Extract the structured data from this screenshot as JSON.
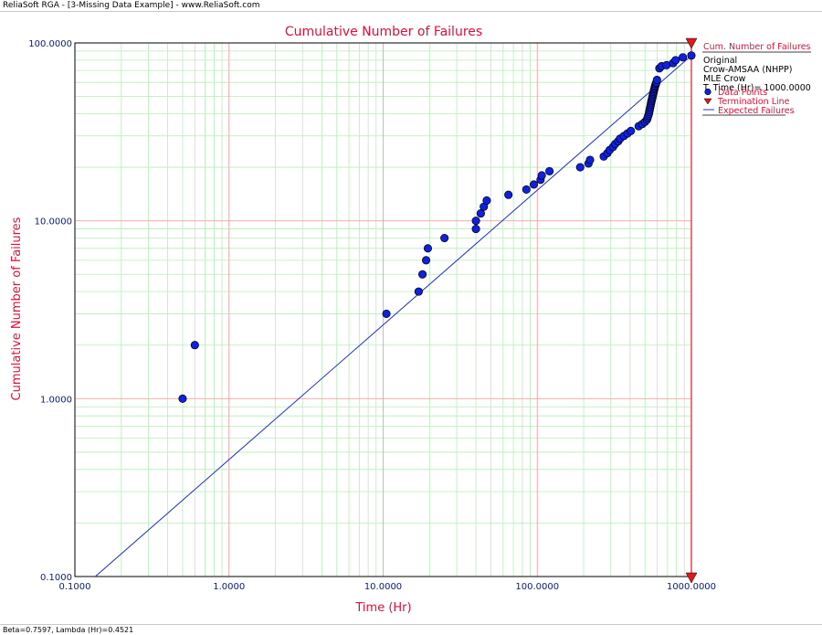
{
  "window": {
    "title": "ReliaSoft RGA - [3-Missing Data Example] - www.ReliaSoft.com"
  },
  "status": {
    "text": "Beta=0.7597, Lambda (Hr)=0.4521"
  },
  "legend": {
    "title": "Cum. Number of Failures",
    "lines": [
      "Original",
      "Crow-AMSAA (NHPP)",
      "MLE Crow",
      "T. Time (Hr)= 1000.0000"
    ],
    "items": [
      "Data Points",
      "Termination Line",
      "Expected Failures"
    ]
  },
  "colors": {
    "title": "#e0103a",
    "tick_label": "#0a1a7a",
    "major_grid": "#f0a0a0",
    "minor_grid": "#b8ecb8",
    "points": "#1020e0",
    "fit_line": "#2030d0",
    "termination": "#e01818"
  },
  "chart_data": {
    "type": "scatter",
    "title": "Cumulative Number of Failures",
    "xlabel": "Time (Hr)",
    "ylabel": "Cumulative Number of Failures",
    "x_scale": "log",
    "y_scale": "log",
    "xlim": [
      0.1,
      1000
    ],
    "ylim": [
      0.1,
      100
    ],
    "grid": true,
    "legend_position": "right",
    "x_ticks": [
      "0.1000",
      "1.0000",
      "10.0000",
      "100.0000",
      "1000.0000"
    ],
    "y_ticks": [
      "0.1000",
      "1.0000",
      "10.0000",
      "100.0000"
    ],
    "series": [
      {
        "name": "Data Points",
        "kind": "points",
        "x": [
          0.5,
          0.6,
          10.5,
          17,
          18,
          19,
          19.5,
          25,
          40,
          40,
          43,
          45,
          47,
          65,
          85,
          95,
          105,
          107,
          120,
          190,
          215,
          220,
          270,
          285,
          295,
          310,
          320,
          335,
          345,
          365,
          385,
          405,
          455,
          480,
          500,
          515,
          520,
          525,
          530,
          533,
          536,
          539,
          542,
          545,
          548,
          551,
          554,
          557,
          560,
          563,
          566,
          569,
          572,
          575,
          578,
          581,
          585,
          589,
          593,
          598,
          620,
          640,
          690,
          760,
          790,
          880,
          1000
        ],
        "y": [
          1,
          2,
          3,
          4,
          5,
          6,
          7,
          8,
          9,
          10,
          11,
          12,
          13,
          14,
          15,
          16,
          17,
          18,
          19,
          20,
          21,
          22,
          23,
          24,
          25,
          26,
          27,
          28,
          29,
          30,
          31,
          32,
          34,
          35,
          36,
          37,
          38,
          39,
          40,
          41,
          42,
          43,
          44,
          45,
          46,
          47,
          48,
          49,
          50,
          51,
          52,
          53,
          54,
          55,
          56,
          57,
          58,
          59,
          60,
          62,
          72,
          74,
          75,
          77,
          80,
          83,
          85
        ]
      },
      {
        "name": "Expected Failures",
        "kind": "line",
        "x": [
          0.1,
          1000
        ],
        "y": [
          0.07941,
          85.0
        ]
      },
      {
        "name": "Termination Line",
        "kind": "vertical",
        "x": [
          1000
        ]
      }
    ]
  }
}
